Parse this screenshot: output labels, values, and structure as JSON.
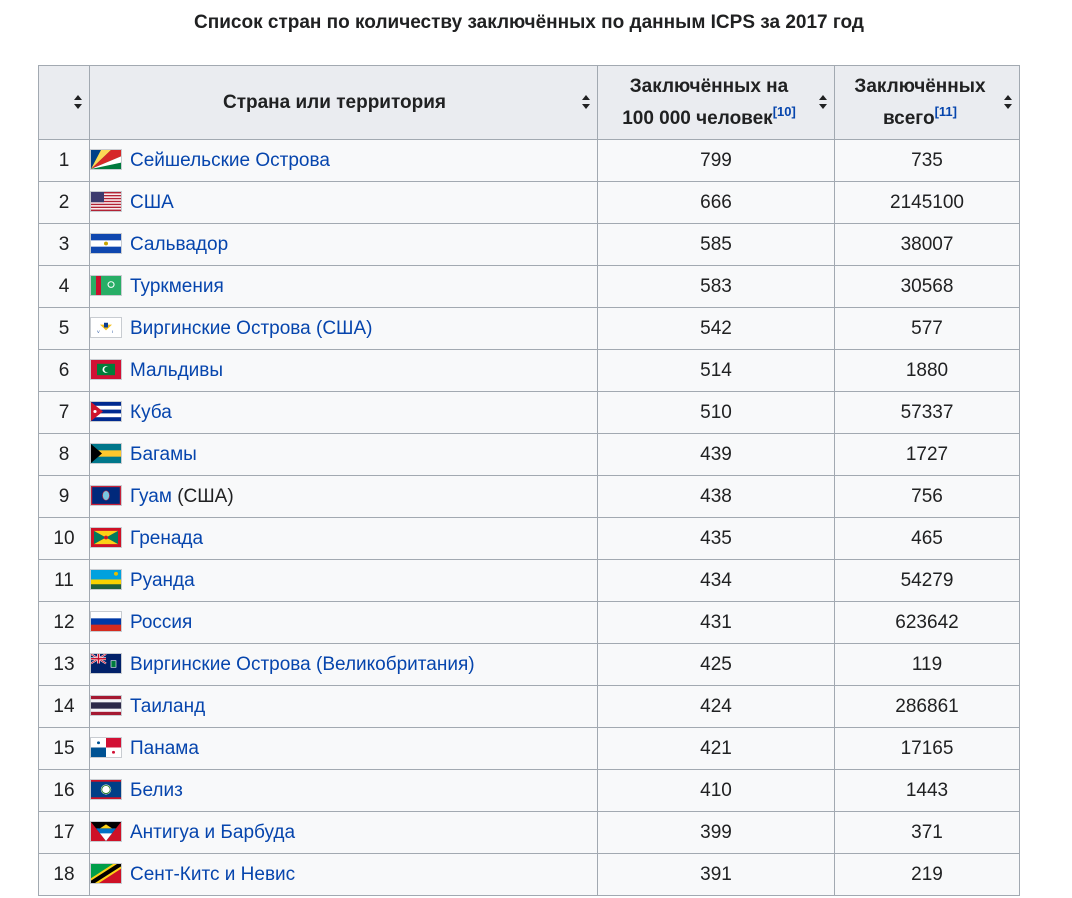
{
  "caption": "Список стран по количеству заключённых по данным ICPS за 2017 год",
  "headers": {
    "rank": "",
    "country": "Страна или территория",
    "rate_line1": "Заключённых на",
    "rate_line2": "100 000 человек",
    "rate_ref": "[10]",
    "total_line1": "Заключённых",
    "total_line2": "всего",
    "total_ref": "[11]"
  },
  "rows": [
    {
      "rank": "1",
      "name": "Сейшельские Острова",
      "suffix": "",
      "flag": "seychelles-flag-icon",
      "rate": "799",
      "total": "735"
    },
    {
      "rank": "2",
      "name": "США",
      "suffix": "",
      "flag": "usa-flag-icon",
      "rate": "666",
      "total": "2145100"
    },
    {
      "rank": "3",
      "name": "Сальвадор",
      "suffix": "",
      "flag": "el-salvador-flag-icon",
      "rate": "585",
      "total": "38007"
    },
    {
      "rank": "4",
      "name": "Туркмения",
      "suffix": "",
      "flag": "turkmenistan-flag-icon",
      "rate": "583",
      "total": "30568"
    },
    {
      "rank": "5",
      "name": "Виргинские Острова (США)",
      "suffix": "",
      "flag": "us-virgin-islands-flag-icon",
      "rate": "542",
      "total": "577"
    },
    {
      "rank": "6",
      "name": "Мальдивы",
      "suffix": "",
      "flag": "maldives-flag-icon",
      "rate": "514",
      "total": "1880"
    },
    {
      "rank": "7",
      "name": "Куба",
      "suffix": "",
      "flag": "cuba-flag-icon",
      "rate": "510",
      "total": "57337"
    },
    {
      "rank": "8",
      "name": "Багамы",
      "suffix": "",
      "flag": "bahamas-flag-icon",
      "rate": "439",
      "total": "1727"
    },
    {
      "rank": "9",
      "name": "Гуам",
      "suffix": " (США)",
      "flag": "guam-flag-icon",
      "rate": "438",
      "total": "756"
    },
    {
      "rank": "10",
      "name": "Гренада",
      "suffix": "",
      "flag": "grenada-flag-icon",
      "rate": "435",
      "total": "465"
    },
    {
      "rank": "11",
      "name": "Руанда",
      "suffix": "",
      "flag": "rwanda-flag-icon",
      "rate": "434",
      "total": "54279"
    },
    {
      "rank": "12",
      "name": "Россия",
      "suffix": "",
      "flag": "russia-flag-icon",
      "rate": "431",
      "total": "623642"
    },
    {
      "rank": "13",
      "name": "Виргинские Острова (Великобритания)",
      "suffix": "",
      "flag": "british-virgin-islands-flag-icon",
      "rate": "425",
      "total": "119"
    },
    {
      "rank": "14",
      "name": "Таиланд",
      "suffix": "",
      "flag": "thailand-flag-icon",
      "rate": "424",
      "total": "286861"
    },
    {
      "rank": "15",
      "name": "Панама",
      "suffix": "",
      "flag": "panama-flag-icon",
      "rate": "421",
      "total": "17165"
    },
    {
      "rank": "16",
      "name": "Белиз",
      "suffix": "",
      "flag": "belize-flag-icon",
      "rate": "410",
      "total": "1443"
    },
    {
      "rank": "17",
      "name": "Антигуа и Барбуда",
      "suffix": "",
      "flag": "antigua-barbuda-flag-icon",
      "rate": "399",
      "total": "371"
    },
    {
      "rank": "18",
      "name": "Сент-Китс и Невис",
      "suffix": "",
      "flag": "saint-kitts-nevis-flag-icon",
      "rate": "391",
      "total": "219"
    }
  ],
  "colors": {
    "link": "#0645ad",
    "header_bg": "#eaecf0",
    "cell_bg": "#f8f9fa",
    "border": "#a2a9b1"
  }
}
